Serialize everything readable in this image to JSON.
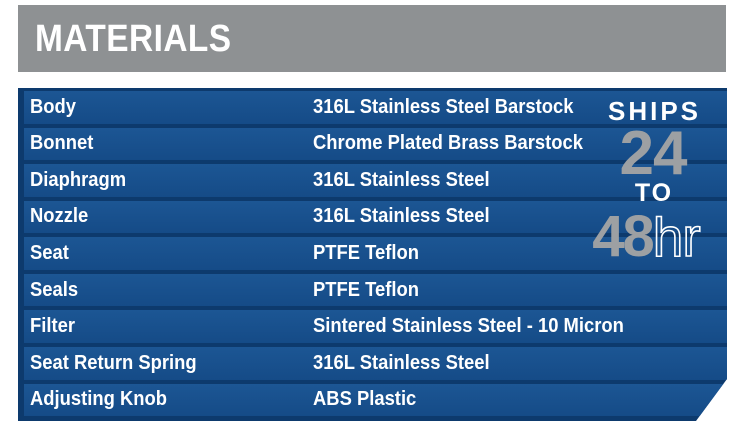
{
  "header": {
    "title": "MATERIALS"
  },
  "table": {
    "rows": [
      {
        "label": "Body",
        "value": "316L Stainless Steel Barstock"
      },
      {
        "label": "Bonnet",
        "value": "Chrome Plated Brass Barstock"
      },
      {
        "label": "Diaphragm",
        "value": "316L Stainless Steel"
      },
      {
        "label": "Nozzle",
        "value": "316L Stainless Steel"
      },
      {
        "label": "Seat",
        "value": "PTFE Teflon"
      },
      {
        "label": "Seals",
        "value": "PTFE Teflon"
      },
      {
        "label": "Filter",
        "value": "Sintered Stainless Steel - 10 Micron"
      },
      {
        "label": "Seat Return Spring",
        "value": "316L Stainless Steel"
      },
      {
        "label": "Adjusting Knob",
        "value": "ABS Plastic"
      }
    ]
  },
  "badge": {
    "ships": "SHIPS",
    "big1": "24",
    "to": "TO",
    "big2": "48",
    "unit": "hr"
  },
  "colors": {
    "panel_blue": "#17518F",
    "panel_dark_blue": "#0D3A6D",
    "header_gray": "#8E9193",
    "badge_gray": "#9DA0A3",
    "text_white": "#FFFFFF"
  }
}
